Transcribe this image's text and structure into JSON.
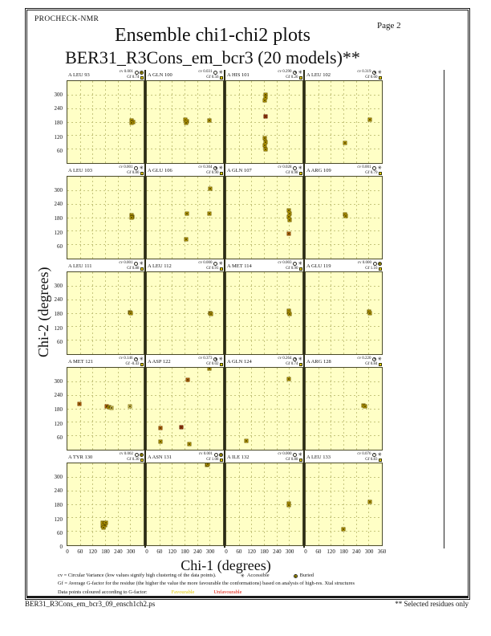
{
  "header": {
    "app": "PROCHECK-NMR",
    "page": "Page 2",
    "title": "Ensemble chi1-chi2 plots",
    "subtitle": "BER31_R3Cons_em_bcr3 (20 models)**"
  },
  "axes": {
    "x_title": "Chi-1 (degrees)",
    "y_title": "Chi-2 (degrees)",
    "x_ticks": [
      0,
      60,
      120,
      180,
      240,
      300
    ],
    "x_end_tick": 360,
    "y_ticks": [
      300,
      240,
      180,
      120,
      60
    ],
    "origin_label": "0"
  },
  "labels": {
    "cv": "cv",
    "gf": "Gf"
  },
  "icons": {
    "accessible_glyph": "✳",
    "clock_icon": "circular-variance-dial",
    "buried_icon": "yellow-dot-circle",
    "gf_icon": "yellow-square"
  },
  "legend": {
    "cv_line": "cv = Circular Variance (low values signify high clustering of the data points).",
    "accessible": "Accessible",
    "buried": "Buried",
    "gf_line": "Gf = Average G-factor for the residue (the higher the value the more favourable the conformations) based on analysis of high-res. Xtal structures",
    "colour_line": "Data points coloured according to G-factor:",
    "favourable": "Favourable",
    "unfavourable": "Unfavourable"
  },
  "footer": {
    "filename": "BER31_R3Cons_em_bcr3_09_ensch1ch2.ps",
    "note": "** Selected residues only"
  },
  "colors": {
    "plot_bg": "#ffffc6",
    "grid_line": "#c6c67c",
    "panel_border": "#4a4a28",
    "favourable_text": "#e0c800",
    "unfavourable_text": "#dd1100",
    "point_colors": {
      "y": {
        "fill": "#f0ce00",
        "edge": "#6e5a00"
      },
      "o": {
        "fill": "#e08214",
        "edge": "#7a3c00"
      },
      "r": {
        "fill": "#c94515",
        "edge": "#5e1500"
      },
      "p": {
        "fill": "#f5e878",
        "edge": "#8a7a20"
      }
    }
  },
  "chart_data": {
    "type": "scatter",
    "grid": "5 rows x 4 cols",
    "x_range": [
      0,
      360
    ],
    "y_range": [
      0,
      360
    ],
    "x_ticks": [
      0,
      60,
      120,
      180,
      240,
      300,
      360
    ],
    "y_ticks": [
      0,
      60,
      120,
      180,
      240,
      300
    ],
    "xlabel": "Chi-1 (degrees)",
    "ylabel": "Chi-2 (degrees)",
    "grid_lines": "dashed every 60 degrees",
    "subplots": [
      {
        "residue": "A LEU 93",
        "cv": "0.001",
        "gf": "0.74",
        "solvent": "Buried",
        "points": [
          [
            303,
            186
          ],
          [
            309,
            181
          ],
          [
            304,
            176
          ]
        ]
      },
      {
        "residue": "A GLN 100",
        "cv": "0.031",
        "gf": "0.56",
        "solvent": "Accessible",
        "points": [
          [
            181,
            190
          ],
          [
            188,
            185
          ],
          [
            184,
            178
          ],
          [
            296,
            188
          ]
        ]
      },
      {
        "residue": "A HIS 101",
        "cv": "0.290",
        "gf": "0.26",
        "solvent": "Accessible",
        "points": [
          [
            184,
            301
          ],
          [
            186,
            289
          ],
          [
            183,
            274
          ],
          [
            185,
            205,
            "r"
          ],
          [
            183,
            109
          ],
          [
            186,
            93
          ],
          [
            182,
            76
          ],
          [
            185,
            61
          ]
        ]
      },
      {
        "residue": "A LEU 102",
        "cv": "0.319",
        "gf": "0.60",
        "solvent": "Accessible",
        "points": [
          [
            303,
            190
          ],
          [
            185,
            87
          ]
        ]
      },
      {
        "residue": "A LEU 103",
        "cv": "0.001",
        "gf": "0.86",
        "solvent": "Accessible",
        "points": [
          [
            302,
            190
          ],
          [
            308,
            185
          ],
          [
            304,
            179
          ]
        ]
      },
      {
        "residue": "A GLU 106",
        "cv": "0.304",
        "gf": "0.90",
        "solvent": "Accessible",
        "points": [
          [
            299,
            306
          ],
          [
            188,
            196
          ],
          [
            296,
            196
          ],
          [
            184,
            84
          ]
        ]
      },
      {
        "residue": "A GLN 107",
        "cv": "0.028",
        "gf": "0.98",
        "solvent": "Accessible",
        "points": [
          [
            297,
            211
          ],
          [
            300,
            197
          ],
          [
            296,
            184
          ],
          [
            299,
            171
          ],
          [
            296,
            108,
            "o"
          ]
        ]
      },
      {
        "residue": "A ARG 109",
        "cv": "0.001",
        "gf": "0.79",
        "solvent": "Accessible",
        "points": [
          [
            184,
            193
          ],
          [
            189,
            187
          ]
        ]
      },
      {
        "residue": "A LEU 111",
        "cv": "0.001",
        "gf": "0.88",
        "solvent": "Accessible",
        "points": [
          [
            297,
            185
          ],
          [
            301,
            179
          ]
        ]
      },
      {
        "residue": "A LEU 112",
        "cv": "0.000",
        "gf": "0.91",
        "solvent": "Accessible",
        "points": [
          [
            298,
            181
          ],
          [
            302,
            176
          ]
        ]
      },
      {
        "residue": "A MET 114",
        "cv": "0.003",
        "gf": "0.90",
        "solvent": "Accessible",
        "points": [
          [
            294,
            190
          ],
          [
            297,
            183
          ],
          [
            299,
            175
          ]
        ]
      },
      {
        "residue": "A GLU 119",
        "cv": "0.000",
        "gf": "1.16",
        "solvent": "Buried",
        "points": [
          [
            301,
            186
          ],
          [
            305,
            181
          ]
        ]
      },
      {
        "residue": "A MET 121",
        "cv": "0.146",
        "gf": "-0.43",
        "solvent": "Accessible",
        "points": [
          [
            55,
            200,
            "o"
          ],
          [
            184,
            190,
            "o"
          ],
          [
            196,
            186
          ],
          [
            210,
            184,
            "p"
          ],
          [
            296,
            190,
            "p"
          ]
        ]
      },
      {
        "residue": "A ASP 122",
        "cv": "0.373",
        "gf": "0.02",
        "solvent": "Accessible",
        "points": [
          [
            297,
            355
          ],
          [
            192,
            308,
            "o"
          ],
          [
            66,
            96,
            "o"
          ],
          [
            162,
            100,
            "r"
          ],
          [
            66,
            34
          ],
          [
            199,
            24
          ]
        ]
      },
      {
        "residue": "A GLN 124",
        "cv": "0.264",
        "gf": "0.74",
        "solvent": "Accessible",
        "points": [
          [
            296,
            310
          ],
          [
            95,
            38
          ]
        ]
      },
      {
        "residue": "A ARG 128",
        "cv": "0.220",
        "gf": "0.84",
        "solvent": "Accessible",
        "points": [
          [
            274,
            195
          ],
          [
            281,
            189
          ]
        ]
      },
      {
        "residue": "A TYR 130",
        "cv": "0.002",
        "gf": "0.30",
        "solvent": "Buried",
        "points": [
          [
            165,
            100
          ],
          [
            174,
            95
          ],
          [
            168,
            84
          ],
          [
            178,
            88
          ],
          [
            172,
            76
          ],
          [
            180,
            98
          ]
        ]
      },
      {
        "residue": "A ASN 131",
        "cv": "0.001",
        "gf": "1.08",
        "solvent": "Buried",
        "points": [
          [
            284,
            352
          ],
          [
            288,
            357
          ]
        ]
      },
      {
        "residue": "A ILE 132",
        "cv": "0.000",
        "gf": "0.88",
        "solvent": "Accessible",
        "points": [
          [
            294,
            184
          ],
          [
            297,
            177
          ]
        ]
      },
      {
        "residue": "A LEU 133",
        "cv": "0.076",
        "gf": "0.83",
        "solvent": "Accessible",
        "points": [
          [
            304,
            192
          ],
          [
            178,
            70
          ]
        ]
      }
    ]
  }
}
